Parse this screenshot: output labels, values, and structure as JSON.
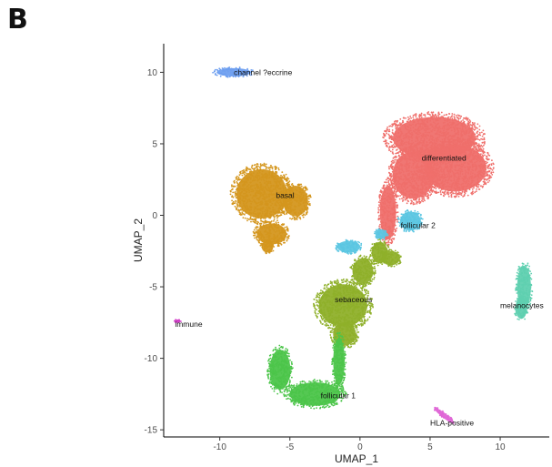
{
  "panel_label": "B",
  "chart_data": {
    "type": "scatter",
    "title": "",
    "xlabel": "UMAP_1",
    "ylabel": "UMAP_2",
    "xlim": [
      -14,
      13.5
    ],
    "ylim": [
      -15.5,
      12
    ],
    "xticks": [
      -10,
      -5,
      0,
      5,
      10
    ],
    "yticks": [
      -15,
      -10,
      -5,
      0,
      5,
      10
    ],
    "grid": false,
    "legend": "none",
    "series": [
      {
        "name": "channel ?eccrine",
        "color": "#6e9ff0",
        "label_xy": [
          -9.0,
          10.0
        ],
        "ellipses": [
          [
            -9.0,
            10.0,
            1.5,
            0.35
          ]
        ]
      },
      {
        "name": "basal",
        "color": "#d4961e",
        "label_xy": [
          -6.0,
          1.4
        ],
        "ellipses": [
          [
            -7.0,
            1.5,
            2.2,
            2.1
          ],
          [
            -4.6,
            1.0,
            1.1,
            1.3
          ],
          [
            -6.3,
            -1.3,
            1.3,
            0.9
          ],
          [
            -6.6,
            -2.2,
            0.5,
            0.5
          ]
        ]
      },
      {
        "name": "differentiated",
        "color": "#ef6f6b",
        "label_xy": [
          4.4,
          4.0
        ],
        "ellipses": [
          [
            5.3,
            5.4,
            3.6,
            1.8
          ],
          [
            6.8,
            3.3,
            2.7,
            2.0
          ],
          [
            3.8,
            2.8,
            1.8,
            2.0
          ],
          [
            2.0,
            0.2,
            0.7,
            2.3
          ]
        ]
      },
      {
        "name": "follicular 2",
        "color": "#5bc6e2",
        "label_xy": [
          2.9,
          -0.7
        ],
        "ellipses": [
          [
            3.6,
            -0.4,
            0.9,
            0.8
          ],
          [
            -0.8,
            -2.2,
            1.0,
            0.5
          ],
          [
            1.5,
            -1.3,
            0.5,
            0.4
          ]
        ]
      },
      {
        "name": "sebaceous",
        "color": "#8fb02a",
        "label_xy": [
          -1.8,
          -5.9
        ],
        "ellipses": [
          [
            -1.2,
            -6.3,
            2.1,
            1.8
          ],
          [
            1.4,
            -2.6,
            0.7,
            0.9
          ],
          [
            0.2,
            -3.9,
            0.9,
            1.1
          ],
          [
            -1.1,
            -8.3,
            1.0,
            1.0
          ],
          [
            2.2,
            -3.0,
            0.8,
            0.6
          ]
        ]
      },
      {
        "name": "follicular 1",
        "color": "#4cc54a",
        "label_xy": [
          -2.8,
          -12.6
        ],
        "ellipses": [
          [
            -3.2,
            -12.5,
            2.2,
            1.0
          ],
          [
            -5.7,
            -10.8,
            0.9,
            1.7
          ],
          [
            -1.5,
            -10.2,
            0.5,
            2.0
          ]
        ]
      },
      {
        "name": "melanocytes",
        "color": "#5fd0b0",
        "label_xy": [
          10.0,
          -6.3
        ],
        "ellipses": [
          [
            11.7,
            -5.0,
            0.6,
            1.8
          ],
          [
            11.5,
            -6.5,
            0.5,
            0.9
          ]
        ]
      },
      {
        "name": "immune",
        "color": "#d23ec8",
        "label_xy": [
          -13.2,
          -7.6
        ],
        "ellipses": [
          [
            -13.0,
            -7.4,
            0.25,
            0.15
          ]
        ]
      },
      {
        "name": "HLA-positive",
        "color": "#df66d6",
        "label_xy": [
          5.0,
          -14.5
        ],
        "ellipses": [
          [
            6.0,
            -14.0,
            1.1,
            0.2,
            -38
          ]
        ]
      }
    ]
  }
}
